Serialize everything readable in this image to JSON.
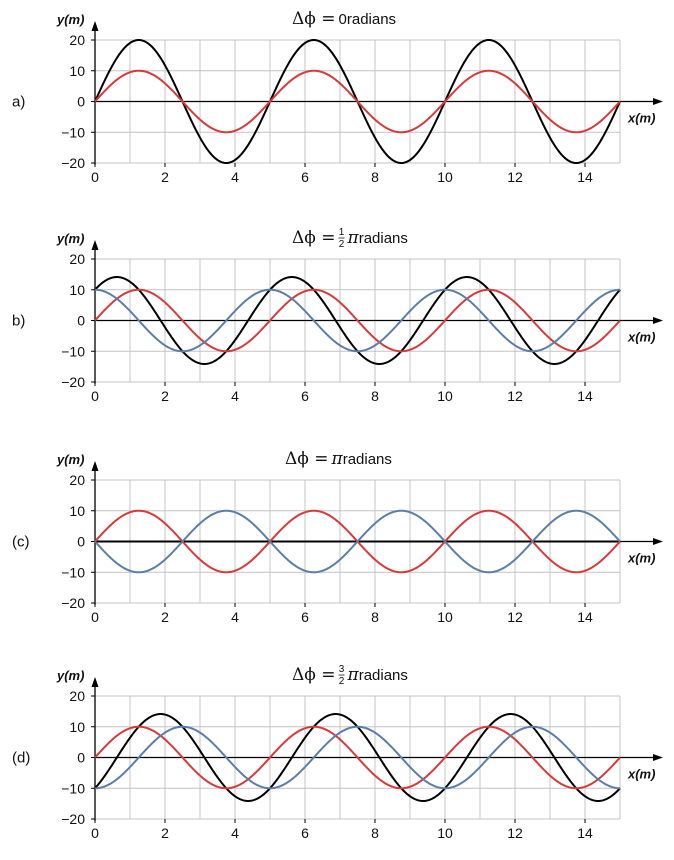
{
  "chart_data": [
    {
      "type": "line",
      "panel_label": "a)",
      "title": {
        "prefix": "Δϕ = ",
        "value": "0",
        "frac_num": "",
        "frac_den": "",
        "suffix": " radians"
      },
      "xlabel": "x(m)",
      "ylabel": "y(m)",
      "xlim": [
        0,
        15
      ],
      "ylim": [
        -20,
        20
      ],
      "xticks": [
        "0",
        "2",
        "4",
        "6",
        "8",
        "10",
        "12",
        "14"
      ],
      "yticks": [
        "20",
        "10",
        "0",
        "−10",
        "−20"
      ],
      "grid": true,
      "wavelength": 5,
      "series": [
        {
          "color": "#000000",
          "amplitude": 20,
          "phase": 0
        },
        {
          "color": "#d63a3a",
          "amplitude": 10,
          "phase": 0
        }
      ]
    },
    {
      "type": "line",
      "panel_label": "b)",
      "title": {
        "prefix": "Δϕ = ",
        "value": "π",
        "frac_num": "1",
        "frac_den": "2",
        "suffix": " radians"
      },
      "xlabel": "x(m)",
      "ylabel": "y(m)",
      "xlim": [
        0,
        15
      ],
      "ylim": [
        -20,
        20
      ],
      "xticks": [
        "0",
        "2",
        "4",
        "6",
        "8",
        "10",
        "12",
        "14"
      ],
      "yticks": [
        "20",
        "10",
        "0",
        "−10",
        "−20"
      ],
      "grid": true,
      "wavelength": 5,
      "series": [
        {
          "color": "#000000",
          "amplitude": 14.14,
          "phase": 0.7854
        },
        {
          "color": "#d63a3a",
          "amplitude": 10,
          "phase": 0
        },
        {
          "color": "#5b7ea8",
          "amplitude": 10,
          "phase": 1.5708
        }
      ]
    },
    {
      "type": "line",
      "panel_label": "(c)",
      "title": {
        "prefix": "Δϕ = ",
        "value": "π",
        "frac_num": "",
        "frac_den": "",
        "suffix": " radians"
      },
      "xlabel": "x(m)",
      "ylabel": "y(m)",
      "xlim": [
        0,
        15
      ],
      "ylim": [
        -20,
        20
      ],
      "xticks": [
        "0",
        "2",
        "4",
        "6",
        "8",
        "10",
        "12",
        "14"
      ],
      "yticks": [
        "20",
        "10",
        "0",
        "−10",
        "−20"
      ],
      "grid": true,
      "wavelength": 5,
      "series": [
        {
          "color": "#000000",
          "amplitude": 0,
          "phase": 0
        },
        {
          "color": "#d63a3a",
          "amplitude": 10,
          "phase": 0
        },
        {
          "color": "#5b7ea8",
          "amplitude": 10,
          "phase": 3.1416
        }
      ]
    },
    {
      "type": "line",
      "panel_label": "(d)",
      "title": {
        "prefix": "Δϕ = ",
        "value": "π",
        "frac_num": "3",
        "frac_den": "2",
        "suffix": " radians"
      },
      "xlabel": "x(m)",
      "ylabel": "y(m)",
      "xlim": [
        0,
        15
      ],
      "ylim": [
        -20,
        20
      ],
      "xticks": [
        "0",
        "2",
        "4",
        "6",
        "8",
        "10",
        "12",
        "14"
      ],
      "yticks": [
        "20",
        "10",
        "0",
        "−10",
        "−20"
      ],
      "grid": true,
      "wavelength": 5,
      "series": [
        {
          "color": "#000000",
          "amplitude": 14.14,
          "phase": -0.7854
        },
        {
          "color": "#d63a3a",
          "amplitude": 10,
          "phase": 0
        },
        {
          "color": "#5b7ea8",
          "amplitude": 10,
          "phase": -1.5708
        }
      ]
    }
  ]
}
